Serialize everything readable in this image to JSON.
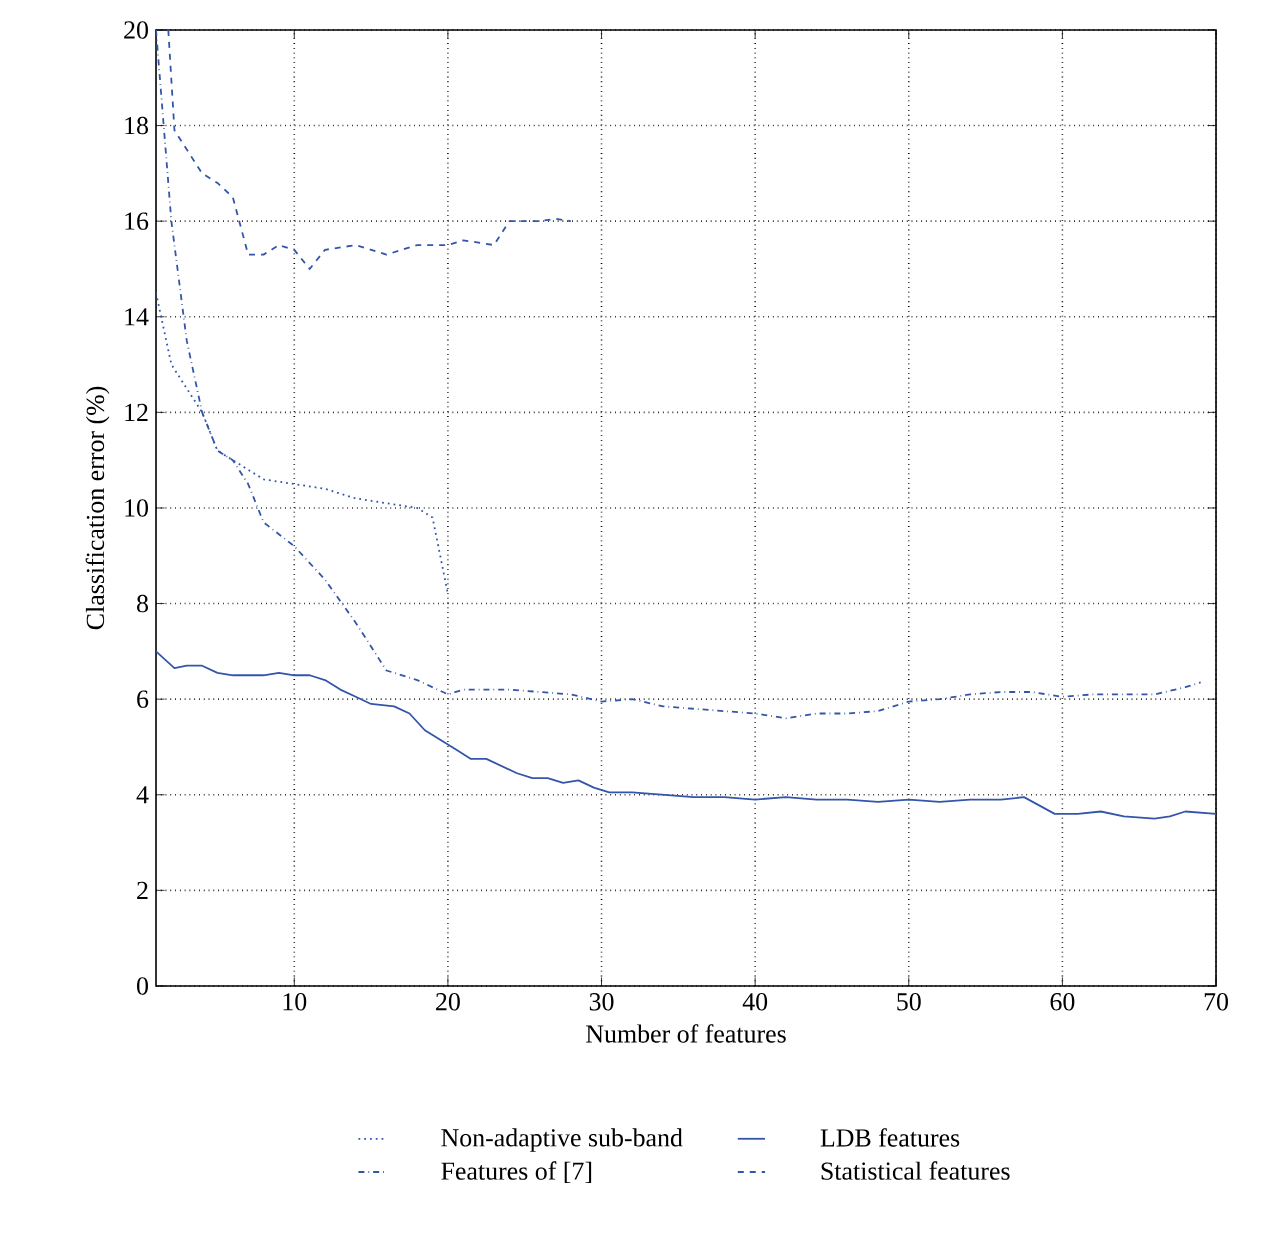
{
  "chart_data": {
    "type": "line",
    "xlabel": "Number of features",
    "ylabel": "Classification error (%)",
    "xlim": [
      1,
      70
    ],
    "ylim": [
      0,
      20
    ],
    "xticks": [
      10,
      20,
      30,
      40,
      50,
      60,
      70
    ],
    "yticks": [
      0,
      2,
      4,
      6,
      8,
      10,
      12,
      14,
      16,
      18,
      20
    ],
    "grid": true,
    "legend": "bottom",
    "series": [
      {
        "name": "Non-adaptive sub-band",
        "color": "#3355aa",
        "line_style": "dotted",
        "x": [
          1,
          2,
          3,
          4,
          5,
          6,
          7,
          8,
          10,
          12,
          14,
          16,
          18,
          19,
          20
        ],
        "values": [
          14.5,
          13,
          12.5,
          12,
          11.2,
          11,
          10.8,
          10.6,
          10.5,
          10.4,
          10.2,
          10.1,
          10,
          9.8,
          8.2
        ]
      },
      {
        "name": "LDB features",
        "color": "#3355aa",
        "line_style": "solid",
        "x": [
          1,
          2.2,
          3,
          4,
          5,
          6,
          8,
          9,
          10,
          11,
          12,
          13,
          14,
          15,
          16.5,
          17.5,
          18.5,
          19.5,
          20.5,
          21.5,
          22.5,
          23.5,
          24.5,
          25.5,
          26.5,
          27.5,
          28.5,
          29.5,
          30.5,
          32,
          34,
          36,
          38,
          40,
          42,
          44,
          46,
          48,
          50,
          52,
          54,
          56,
          57.5,
          59.5,
          61,
          62.5,
          64,
          66,
          67,
          68,
          70
        ],
        "values": [
          7,
          6.65,
          6.7,
          6.7,
          6.55,
          6.5,
          6.5,
          6.55,
          6.5,
          6.5,
          6.4,
          6.2,
          6.05,
          5.9,
          5.85,
          5.7,
          5.35,
          5.15,
          4.95,
          4.75,
          4.75,
          4.6,
          4.45,
          4.35,
          4.35,
          4.25,
          4.3,
          4.15,
          4.05,
          4.05,
          4,
          3.95,
          3.95,
          3.9,
          3.95,
          3.9,
          3.9,
          3.85,
          3.9,
          3.85,
          3.9,
          3.9,
          3.95,
          3.6,
          3.6,
          3.65,
          3.55,
          3.5,
          3.55,
          3.65,
          3.6
        ]
      },
      {
        "name": "Features of [7]",
        "color": "#3355aa",
        "line_style": "dashdot",
        "x": [
          1,
          2,
          3,
          4,
          5,
          6,
          7,
          8,
          10,
          12,
          14,
          16,
          18,
          20,
          21,
          24,
          28,
          30,
          32,
          34,
          36,
          38,
          40,
          42,
          44,
          46,
          48,
          50,
          52,
          54,
          56,
          58,
          60,
          62,
          64,
          66,
          68,
          69
        ],
        "values": [
          20,
          16,
          13.5,
          12,
          11.2,
          11,
          10.5,
          9.7,
          9.2,
          8.5,
          7.6,
          6.6,
          6.4,
          6.1,
          6.2,
          6.2,
          6.1,
          5.95,
          6,
          5.85,
          5.8,
          5.75,
          5.7,
          5.6,
          5.7,
          5.7,
          5.75,
          5.95,
          6,
          6.1,
          6.15,
          6.15,
          6.05,
          6.1,
          6.1,
          6.1,
          6.25,
          6.35
        ]
      },
      {
        "name": "Statistical features",
        "color": "#3355aa",
        "line_style": "dashed",
        "x": [
          1.8,
          2.2,
          4,
          5,
          6,
          7,
          8,
          9,
          10,
          11,
          12,
          14,
          16,
          18,
          20,
          21,
          23,
          24,
          26,
          27,
          28
        ],
        "values": [
          20,
          17.9,
          17,
          16.8,
          16.5,
          15.3,
          15.3,
          15.5,
          15.4,
          15,
          15.4,
          15.5,
          15.3,
          15.5,
          15.5,
          15.6,
          15.5,
          16,
          16,
          16.05,
          16
        ]
      }
    ]
  }
}
